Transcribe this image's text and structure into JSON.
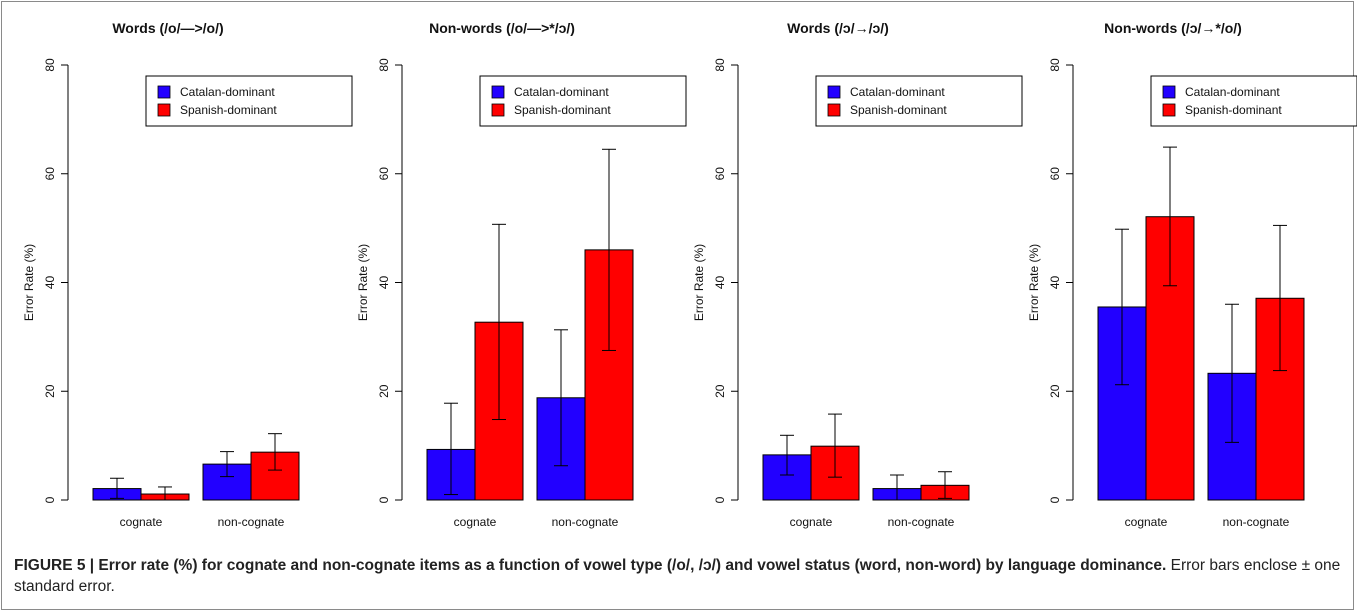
{
  "chart_data": [
    {
      "type": "bar",
      "title": "Words (/o/—>/o/)",
      "ylabel": "Error Rate (%)",
      "ylim": [
        0,
        80
      ],
      "yticks": [
        0,
        20,
        40,
        60,
        80
      ],
      "categories": [
        "cognate",
        "non-cognate"
      ],
      "series": [
        {
          "name": "Catalan-dominant",
          "color": "#2200ff",
          "values": [
            2.1,
            6.6
          ],
          "error_low": [
            0.3,
            4.3
          ],
          "error_high": [
            4.0,
            8.9
          ]
        },
        {
          "name": "Spanish-dominant",
          "color": "#ff0000",
          "values": [
            1.1,
            8.8
          ],
          "error_low": [
            0.0,
            5.5
          ],
          "error_high": [
            2.4,
            12.2
          ]
        }
      ],
      "legend_position": "top-center"
    },
    {
      "type": "bar",
      "title": "Non-words (/o/—>*/ɔ/)",
      "ylabel": "Error Rate (%)",
      "ylim": [
        0,
        80
      ],
      "yticks": [
        0,
        20,
        40,
        60,
        80
      ],
      "categories": [
        "cognate",
        "non-cognate"
      ],
      "series": [
        {
          "name": "Catalan-dominant",
          "color": "#2200ff",
          "values": [
            9.3,
            18.8
          ],
          "error_low": [
            1.0,
            6.3
          ],
          "error_high": [
            17.8,
            31.3
          ]
        },
        {
          "name": "Spanish-dominant",
          "color": "#ff0000",
          "values": [
            32.7,
            46.0
          ],
          "error_low": [
            14.8,
            27.5
          ],
          "error_high": [
            50.7,
            64.5
          ]
        }
      ],
      "legend_position": "top-center"
    },
    {
      "type": "bar",
      "title": "Words (/ɔ/→/ɔ/)",
      "ylabel": "Error Rate (%)",
      "ylim": [
        0,
        80
      ],
      "yticks": [
        0,
        20,
        40,
        60,
        80
      ],
      "categories": [
        "cognate",
        "non-cognate"
      ],
      "series": [
        {
          "name": "Catalan-dominant",
          "color": "#2200ff",
          "values": [
            8.3,
            2.1
          ],
          "error_low": [
            4.6,
            0.0
          ],
          "error_high": [
            11.9,
            4.6
          ]
        },
        {
          "name": "Spanish-dominant",
          "color": "#ff0000",
          "values": [
            9.9,
            2.7
          ],
          "error_low": [
            4.2,
            0.3
          ],
          "error_high": [
            15.8,
            5.2
          ]
        }
      ],
      "legend_position": "top-center"
    },
    {
      "type": "bar",
      "title": "Non-words (/ɔ/→*/o/)",
      "ylabel": "Error Rate (%)",
      "ylim": [
        0,
        80
      ],
      "yticks": [
        0,
        20,
        40,
        60,
        80
      ],
      "categories": [
        "cognate",
        "non-cognate"
      ],
      "series": [
        {
          "name": "Catalan-dominant",
          "color": "#2200ff",
          "values": [
            35.5,
            23.3
          ],
          "error_low": [
            21.2,
            10.6
          ],
          "error_high": [
            49.8,
            36.0
          ]
        },
        {
          "name": "Spanish-dominant",
          "color": "#ff0000",
          "values": [
            52.1,
            37.1
          ],
          "error_low": [
            39.4,
            23.8
          ],
          "error_high": [
            64.9,
            50.5
          ]
        }
      ],
      "legend_position": "top-center"
    }
  ],
  "caption": {
    "label": "FIGURE 5 | Error rate (%) for cognate and non-cognate items as a function of vowel type (/o/, /ɔ/) and vowel status (word, non-word) by language dominance.",
    "text": " Error bars enclose ± one standard error."
  }
}
